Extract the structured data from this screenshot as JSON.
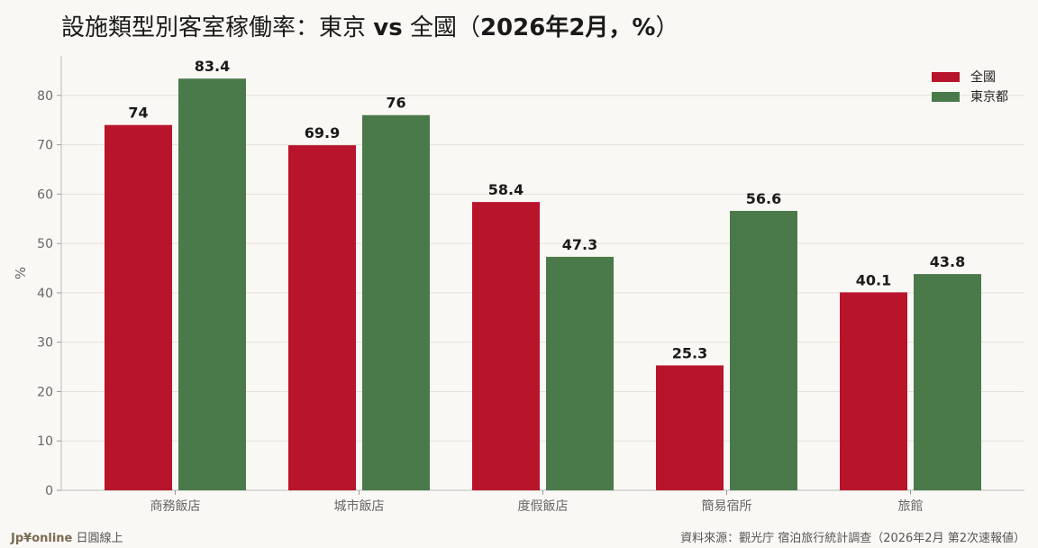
{
  "header": {
    "title_part1": "設施類型別客室稼働率：東京 ",
    "title_vs": "vs",
    "title_part2": " 全國（",
    "title_part3": "2026年2月，%",
    "title_part4": "）"
  },
  "footer": {
    "brand": "Jp¥online",
    "brand_sub": " 日圓線上",
    "source": "資料來源：觀光庁 宿泊旅行統計調查（2026年2月 第2次速報値）"
  },
  "colors": {
    "national": "#b8142c",
    "tokyo": "#4a7a4a"
  },
  "chart_data": {
    "type": "bar",
    "categories": [
      "商務飯店",
      "城市飯店",
      "度假飯店",
      "簡易宿所",
      "旅館"
    ],
    "series": [
      {
        "name": "全國",
        "values": [
          74,
          69.9,
          58.4,
          25.3,
          40.1
        ],
        "labels": [
          "74",
          "69.9",
          "58.4",
          "25.3",
          "40.1"
        ]
      },
      {
        "name": "東京都",
        "values": [
          83.4,
          76,
          47.3,
          56.6,
          43.8
        ],
        "labels": [
          "83.4",
          "76",
          "47.3",
          "56.6",
          "43.8"
        ]
      }
    ],
    "ylabel": "%",
    "ylim": [
      0,
      88
    ],
    "yticks": [
      0,
      10,
      20,
      30,
      40,
      50,
      60,
      70,
      80
    ],
    "legend_position": "top-right",
    "grid": true
  }
}
